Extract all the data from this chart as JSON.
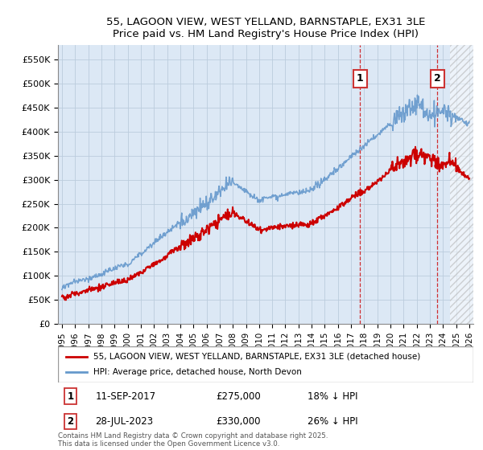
{
  "title_line1": "55, LAGOON VIEW, WEST YELLAND, BARNSTAPLE, EX31 3LE",
  "title_line2": "Price paid vs. HM Land Registry's House Price Index (HPI)",
  "xlim_left": 1994.7,
  "xlim_right": 2026.3,
  "ylim": [
    0,
    580000
  ],
  "yticks": [
    0,
    50000,
    100000,
    150000,
    200000,
    250000,
    300000,
    350000,
    400000,
    450000,
    500000,
    550000
  ],
  "ytick_labels": [
    "£0",
    "£50K",
    "£100K",
    "£150K",
    "£200K",
    "£250K",
    "£300K",
    "£350K",
    "£400K",
    "£450K",
    "£500K",
    "£550K"
  ],
  "marker1_x": 2017.69,
  "marker1_y": 275000,
  "marker1_label": "1",
  "marker1_date": "11-SEP-2017",
  "marker1_price": "£275,000",
  "marker1_hpi": "18% ↓ HPI",
  "marker2_x": 2023.57,
  "marker2_y": 330000,
  "marker2_label": "2",
  "marker2_date": "28-JUL-2023",
  "marker2_price": "£330,000",
  "marker2_hpi": "26% ↓ HPI",
  "legend_line1": "55, LAGOON VIEW, WEST YELLAND, BARNSTAPLE, EX31 3LE (detached house)",
  "legend_line2": "HPI: Average price, detached house, North Devon",
  "footer": "Contains HM Land Registry data © Crown copyright and database right 2025.\nThis data is licensed under the Open Government Licence v3.0.",
  "red_color": "#cc0000",
  "blue_color": "#6699cc",
  "background_color": "#dce8f5",
  "hatch_start": 2024.5,
  "figsize": [
    6.0,
    5.6
  ],
  "dpi": 100
}
